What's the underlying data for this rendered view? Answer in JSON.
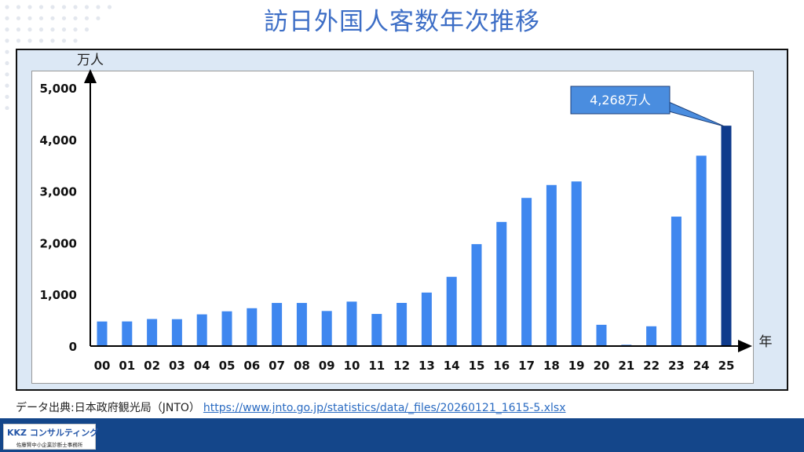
{
  "title": "訪日外国人客数年次推移",
  "source": {
    "label": "データ出典:日本政府観光局（JNTO）",
    "url": "https://www.jnto.go.jp/statistics/data/_files/20260121_1615-5.xlsx"
  },
  "logo": {
    "name": "KKZ コンサルティング",
    "subtitle": "佐藤賢中小企業診断士事務所"
  },
  "colors": {
    "bar": "#3f87ef",
    "highlight_bar": "#0f3b8c",
    "title": "#3d6ec6",
    "frame": "#dce8f5",
    "footer": "#14468a"
  },
  "chart_data": {
    "type": "bar",
    "title": "訪日外国人客数年次推移",
    "xlabel": "年",
    "ylabel": "万人",
    "ylim": [
      0,
      5000
    ],
    "yticks": [
      "0",
      "1,000",
      "2,000",
      "3,000",
      "4,000",
      "5,000"
    ],
    "categories": [
      "00",
      "01",
      "02",
      "03",
      "04",
      "05",
      "06",
      "07",
      "08",
      "09",
      "10",
      "11",
      "12",
      "13",
      "14",
      "15",
      "16",
      "17",
      "18",
      "19",
      "20",
      "21",
      "22",
      "23",
      "24",
      "25"
    ],
    "values": [
      476,
      477,
      524,
      521,
      614,
      673,
      733,
      835,
      835,
      679,
      861,
      622,
      836,
      1036,
      1341,
      1974,
      2404,
      2869,
      3119,
      3188,
      412,
      25,
      383,
      2507,
      3687,
      4268
    ],
    "annotation": {
      "category": "25",
      "text": "4,268万人"
    },
    "grid": false
  }
}
